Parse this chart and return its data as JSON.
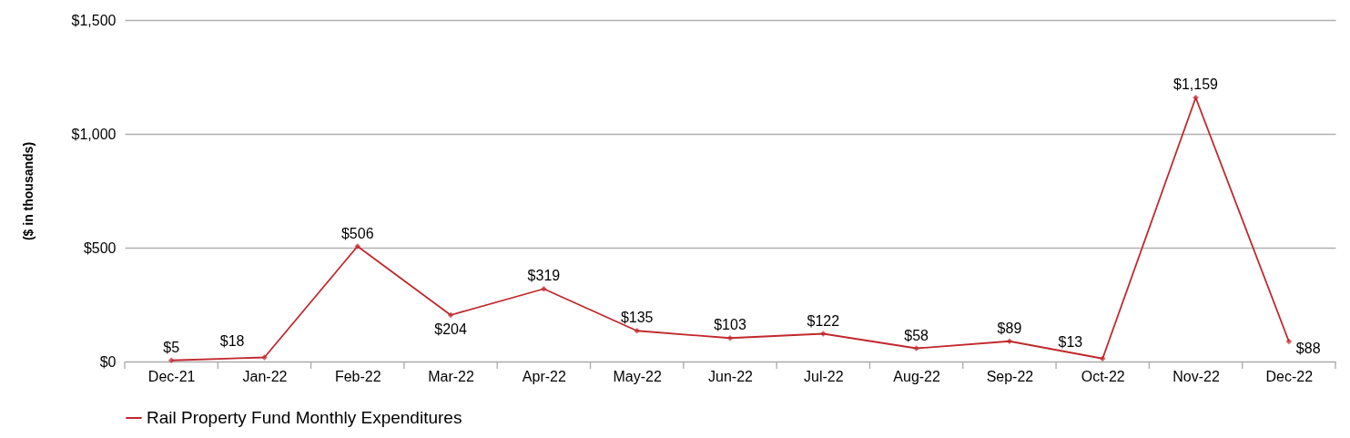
{
  "chart_data": {
    "type": "line",
    "ylabel": "($ in thousands)",
    "categories": [
      "Dec-21",
      "Jan-22",
      "Feb-22",
      "Mar-22",
      "Apr-22",
      "May-22",
      "Jun-22",
      "Jul-22",
      "Aug-22",
      "Sep-22",
      "Oct-22",
      "Nov-22",
      "Dec-22"
    ],
    "series": [
      {
        "name": "Rail Property Fund Monthly Expenditures",
        "color": "#c0282d",
        "values": [
          5,
          18,
          506,
          204,
          319,
          135,
          103,
          122,
          58,
          89,
          13,
          1159,
          88
        ],
        "value_labels": [
          "$5",
          "$18",
          "$506",
          "$204",
          "$319",
          "$135",
          "$103",
          "$122",
          "$58",
          "$89",
          "$13",
          "$1,159",
          "$88"
        ]
      }
    ],
    "ylim": [
      0,
      1500
    ],
    "yticks": [
      {
        "value": 0,
        "label": "$0"
      },
      {
        "value": 500,
        "label": "$500"
      },
      {
        "value": 1000,
        "label": "$1,000"
      },
      {
        "value": 1500,
        "label": "$1,500"
      }
    ],
    "grid": "y",
    "legend": "bottom",
    "marker": "diamond",
    "line_style": "solid"
  }
}
